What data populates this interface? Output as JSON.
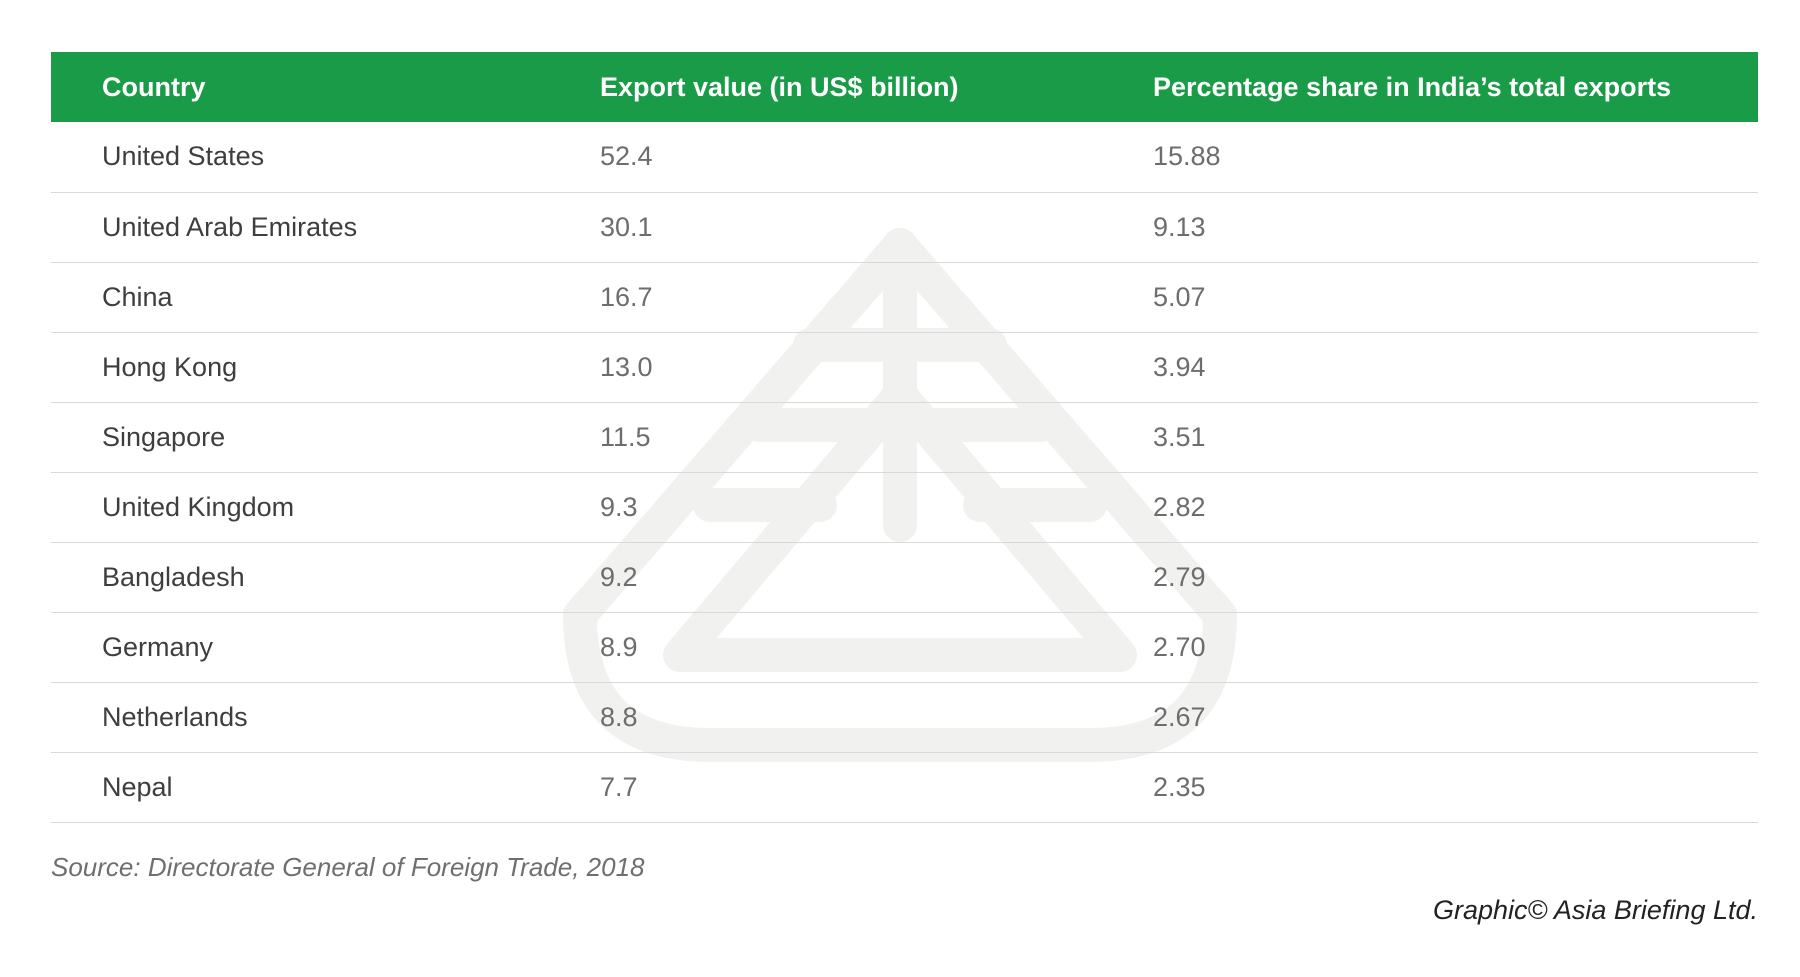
{
  "chart_data": {
    "type": "table",
    "columns": [
      "Country",
      "Export value (in US$ billion)",
      "Percentage share in India’s total exports"
    ],
    "rows": [
      {
        "country": "United States",
        "export_value": "52.4",
        "share": "15.88"
      },
      {
        "country": "United Arab Emirates",
        "export_value": "30.1",
        "share": "9.13"
      },
      {
        "country": "China",
        "export_value": "16.7",
        "share": "5.07"
      },
      {
        "country": "Hong Kong",
        "export_value": "13.0",
        "share": "3.94"
      },
      {
        "country": "Singapore",
        "export_value": "11.5",
        "share": "3.51"
      },
      {
        "country": "United Kingdom",
        "export_value": "9.3",
        "share": "2.82"
      },
      {
        "country": "Bangladesh",
        "export_value": "9.2",
        "share": "2.79"
      },
      {
        "country": "Germany",
        "export_value": "8.9",
        "share": "2.70"
      },
      {
        "country": "Netherlands",
        "export_value": "8.8",
        "share": "2.67"
      },
      {
        "country": "Nepal",
        "export_value": "7.7",
        "share": "2.35"
      }
    ],
    "source": "Source: Directorate General of Foreign Trade, 2018",
    "credit": "Graphic© Asia Briefing Ltd.",
    "header_color": "#1a9b47"
  },
  "watermark": {
    "icon": "asia-briefing-logo-watermark",
    "color": "#f1f1ef"
  }
}
